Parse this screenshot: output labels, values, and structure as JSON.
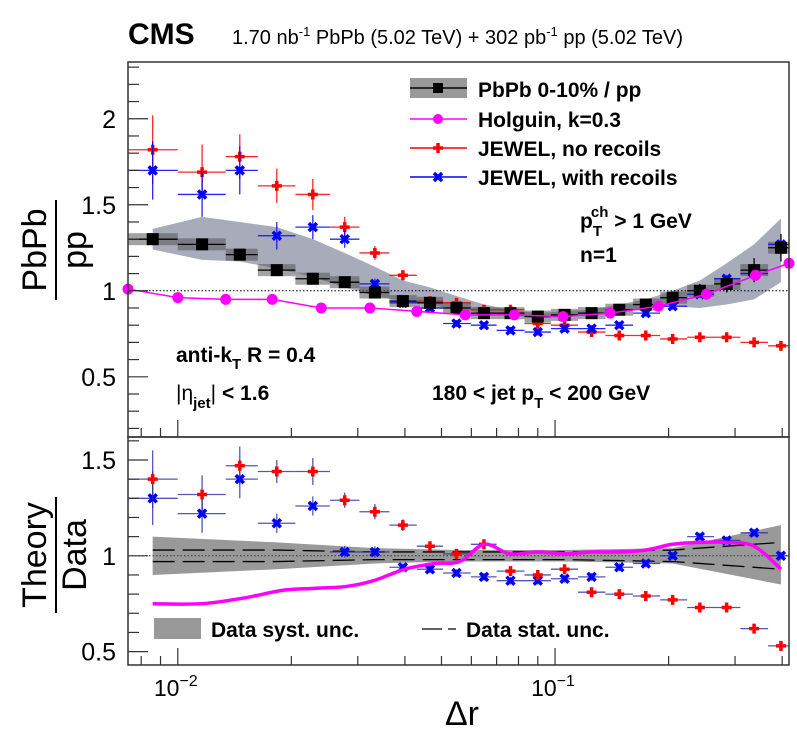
{
  "header": {
    "experiment": "CMS",
    "lumi_pbpb": "1.70 nb",
    "lumi_pbpb_exp": "-1",
    "lumi_pbpb_rest": " PbPb (5.02 TeV) + 302 pb",
    "lumi_pp_exp": "-1",
    "lumi_pp_rest": " pp (5.02 TeV)"
  },
  "chart_data": [
    {
      "panel": "top",
      "type": "scatter",
      "title": "",
      "xlabel": "Δr",
      "ylabel_num": "PbPb",
      "ylabel_den": "pp",
      "xscale": "log",
      "xlim": [
        0.00738,
        0.417
      ],
      "ylim": [
        0.15,
        2.33
      ],
      "yticks": [
        0.5,
        1,
        1.5,
        2
      ],
      "ytick_labels": [
        "0.5",
        "1",
        "1.5",
        "2"
      ],
      "reference_line": 1,
      "legend_position": "top-right",
      "x": [
        0.00858,
        0.0116,
        0.0146,
        0.0183,
        0.0228,
        0.0277,
        0.0333,
        0.0395,
        0.0466,
        0.0548,
        0.0648,
        0.0762,
        0.09,
        0.106,
        0.125,
        0.148,
        0.174,
        0.205,
        0.242,
        0.285,
        0.337,
        0.397
      ],
      "x_edges": [
        0.00738,
        0.01,
        0.0134,
        0.0163,
        0.0205,
        0.0253,
        0.0303,
        0.0364,
        0.043,
        0.0505,
        0.0598,
        0.07,
        0.083,
        0.0975,
        0.115,
        0.136,
        0.161,
        0.19,
        0.224,
        0.264,
        0.31,
        0.367,
        0.417
      ],
      "series": [
        {
          "name": "PbPb 0-10% / pp",
          "color": "#000000",
          "marker": "square",
          "values": [
            1.3,
            1.27,
            1.21,
            1.12,
            1.07,
            1.05,
            0.99,
            0.94,
            0.93,
            0.9,
            0.87,
            0.87,
            0.85,
            0.86,
            0.87,
            0.89,
            0.92,
            0.96,
            1.0,
            1.04,
            1.12,
            1.25
          ],
          "stat_err": [
            0.03,
            0.03,
            0.03,
            0.02,
            0.02,
            0.02,
            0.02,
            0.02,
            0.02,
            0.02,
            0.02,
            0.02,
            0.02,
            0.02,
            0.02,
            0.02,
            0.02,
            0.03,
            0.04,
            0.05,
            0.07,
            0.08
          ],
          "syst_lo": [
            1.24,
            1.18,
            1.17,
            1.13,
            1.08,
            1.02,
            0.97,
            0.94,
            0.92,
            0.89,
            0.87,
            0.86,
            0.84,
            0.85,
            0.86,
            0.88,
            0.9,
            0.91,
            0.9,
            0.92,
            0.95,
            1.05
          ],
          "syst_hi": [
            1.36,
            1.43,
            1.4,
            1.37,
            1.3,
            1.22,
            1.14,
            1.06,
            1.02,
            0.97,
            0.92,
            0.89,
            0.87,
            0.88,
            0.89,
            0.92,
            0.95,
            1.0,
            1.06,
            1.16,
            1.27,
            1.42
          ]
        },
        {
          "name": "Holguin, k=0.3",
          "color": "#ff00ff",
          "marker": "circle",
          "x": [
            0.00738,
            0.01,
            0.0134,
            0.0178,
            0.024,
            0.0323,
            0.043,
            0.0578,
            0.078,
            0.105,
            0.14,
            0.188,
            0.252,
            0.34,
            0.417
          ],
          "values": [
            1.01,
            0.96,
            0.95,
            0.95,
            0.9,
            0.9,
            0.88,
            0.86,
            0.86,
            0.85,
            0.87,
            0.91,
            0.98,
            1.09,
            1.16
          ]
        },
        {
          "name": "JEWEL, no recoils",
          "color": "#ff0000",
          "marker": "cross",
          "values": [
            1.82,
            1.69,
            1.78,
            1.61,
            1.56,
            1.37,
            1.22,
            1.09,
            0.94,
            0.93,
            0.89,
            0.89,
            0.81,
            0.8,
            0.76,
            0.74,
            0.74,
            0.72,
            0.73,
            0.73,
            0.7,
            0.68
          ],
          "err": [
            0.2,
            0.16,
            0.13,
            0.1,
            0.09,
            0.06,
            0.04,
            0.03,
            0.02,
            0.02,
            0.02,
            0.02,
            0.02,
            0.02,
            0.02,
            0.02,
            0.02,
            0.02,
            0.02,
            0.02,
            0.02,
            0.02
          ]
        },
        {
          "name": "JEWEL, with recoils",
          "color": "#0000ff",
          "marker": "x-cross",
          "values": [
            1.7,
            1.56,
            1.7,
            1.32,
            1.37,
            1.3,
            1.04,
            0.93,
            0.9,
            0.81,
            0.8,
            0.77,
            0.76,
            0.78,
            0.78,
            0.8,
            0.87,
            0.91,
            0.98,
            1.07,
            1.1,
            1.27
          ],
          "err": [
            0.17,
            0.13,
            0.14,
            0.08,
            0.07,
            0.05,
            0.03,
            0.03,
            0.02,
            0.02,
            0.02,
            0.02,
            0.02,
            0.02,
            0.02,
            0.02,
            0.02,
            0.02,
            0.02,
            0.02,
            0.02,
            0.03
          ]
        }
      ],
      "annotations": [
        "p_T^ch > 1 GeV",
        "n=1",
        "anti-k_T R = 0.4",
        "|η_jet| < 1.6",
        "180 < jet p_T < 200 GeV"
      ]
    },
    {
      "panel": "bottom",
      "type": "scatter",
      "xlabel": "Δr",
      "ylabel_num": "Theory",
      "ylabel_den": "Data",
      "xscale": "log",
      "xlim": [
        0.00738,
        0.417
      ],
      "ylim": [
        0.43,
        1.62
      ],
      "yticks": [
        0.5,
        1,
        1.5
      ],
      "ytick_labels": [
        "0.5",
        "1",
        "1.5"
      ],
      "xticks_major": [
        0.01,
        0.1
      ],
      "xtick_labels": [
        "10^-2",
        "10^-1"
      ],
      "reference_line": 1,
      "legend_position": "bottom-left",
      "x": [
        0.00858,
        0.0116,
        0.0146,
        0.0183,
        0.0228,
        0.0277,
        0.0333,
        0.0395,
        0.0466,
        0.0548,
        0.0648,
        0.0762,
        0.09,
        0.106,
        0.125,
        0.148,
        0.174,
        0.205,
        0.242,
        0.285,
        0.337,
        0.397
      ],
      "series": [
        {
          "name": "Data syst. unc.",
          "color": "#999999",
          "type": "band",
          "x": [
            0.00858,
            0.0183,
            0.0333,
            0.0548,
            0.106,
            0.205,
            0.397
          ],
          "lo": [
            0.9,
            0.93,
            0.96,
            0.97,
            0.97,
            0.96,
            0.85
          ],
          "hi": [
            1.1,
            1.07,
            1.04,
            1.03,
            1.03,
            1.04,
            1.16
          ]
        },
        {
          "name": "Data stat. unc.",
          "color": "#000000",
          "type": "dashed",
          "x": [
            0.00858,
            0.0183,
            0.0333,
            0.0548,
            0.106,
            0.205,
            0.397
          ],
          "lo": [
            0.97,
            0.97,
            0.98,
            0.98,
            0.98,
            0.97,
            0.93
          ],
          "hi": [
            1.03,
            1.03,
            1.02,
            1.02,
            1.02,
            1.03,
            1.07
          ]
        },
        {
          "name": "Holguin, k=0.3",
          "color": "#ff00ff",
          "type": "curve",
          "x": [
            0.00858,
            0.0116,
            0.015,
            0.019,
            0.023,
            0.028,
            0.033,
            0.04,
            0.048,
            0.056,
            0.065,
            0.076,
            0.09,
            0.106,
            0.125,
            0.148,
            0.174,
            0.205,
            0.242,
            0.285,
            0.337,
            0.397
          ],
          "values": [
            0.75,
            0.75,
            0.78,
            0.82,
            0.83,
            0.84,
            0.87,
            0.93,
            0.96,
            0.97,
            1.06,
            1.01,
            1.02,
            1.01,
            1.02,
            1.02,
            1.03,
            1.06,
            1.07,
            1.07,
            1.05,
            0.93
          ]
        },
        {
          "name": "JEWEL, no recoils",
          "color": "#ff0000",
          "marker": "cross",
          "values": [
            1.4,
            1.32,
            1.47,
            1.44,
            1.44,
            1.29,
            1.23,
            1.16,
            1.05,
            1.01,
            1.06,
            0.92,
            0.9,
            0.93,
            0.81,
            0.8,
            0.79,
            0.77,
            0.73,
            0.73,
            0.62,
            0.53
          ],
          "err": [
            0.15,
            0.1,
            0.1,
            0.06,
            0.07,
            0.04,
            0.04,
            0.03,
            0.02,
            0.02,
            0.02,
            0.02,
            0.02,
            0.02,
            0.02,
            0.02,
            0.02,
            0.02,
            0.02,
            0.02,
            0.02,
            0.02
          ]
        },
        {
          "name": "JEWEL, with recoils",
          "color": "#0000ff",
          "marker": "x-cross",
          "values": [
            1.3,
            1.22,
            1.4,
            1.17,
            1.26,
            1.02,
            1.02,
            0.94,
            0.93,
            0.91,
            0.89,
            0.87,
            0.87,
            0.88,
            0.89,
            0.94,
            0.96,
            1.0,
            1.1,
            1.08,
            1.12,
            1.0
          ],
          "err": [
            0.14,
            0.1,
            0.1,
            0.05,
            0.05,
            0.03,
            0.03,
            0.02,
            0.02,
            0.02,
            0.02,
            0.02,
            0.02,
            0.02,
            0.02,
            0.02,
            0.02,
            0.02,
            0.02,
            0.02,
            0.02,
            0.02
          ]
        }
      ]
    }
  ]
}
